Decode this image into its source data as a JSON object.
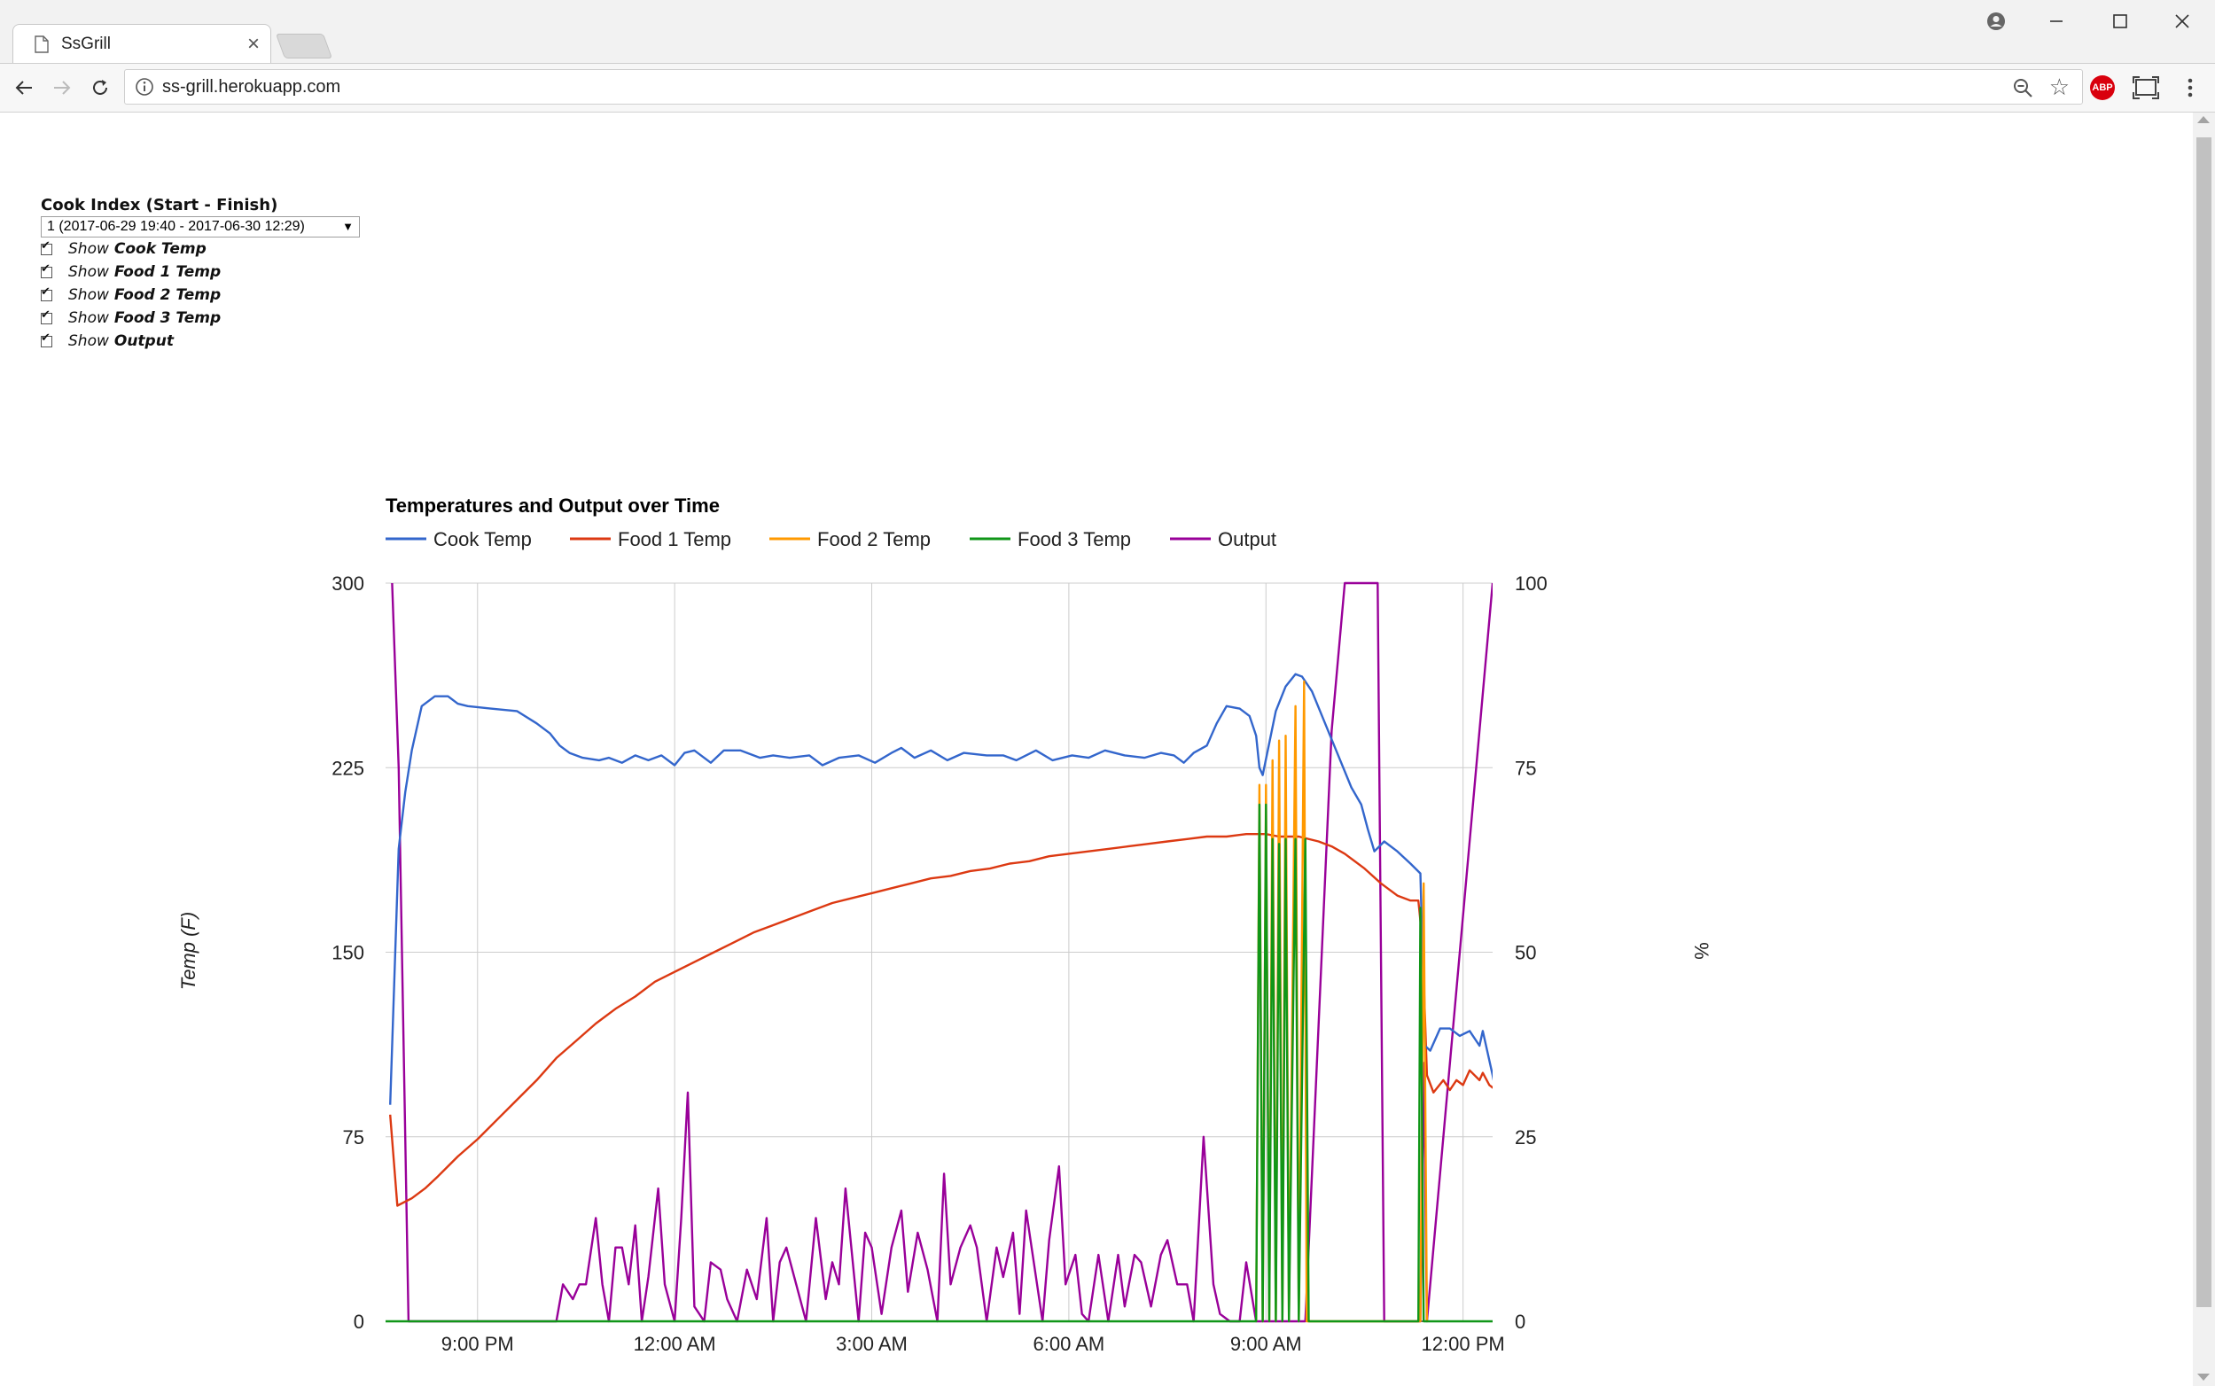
{
  "browser": {
    "tab_title": "SsGrill",
    "tab_close": "×",
    "url": "ss-grill.herokuapp.com",
    "star": "☆",
    "abp_label": "ABP"
  },
  "controls": {
    "cook_index_label": "Cook Index (Start - Finish)",
    "cook_index_value": "1 (2017-06-29 19:40 - 2017-06-30 12:29)",
    "checkbox_prefix": "Show",
    "checkboxes": [
      {
        "label": "Cook Temp",
        "checked": true
      },
      {
        "label": "Food 1 Temp",
        "checked": true
      },
      {
        "label": "Food 2 Temp",
        "checked": true
      },
      {
        "label": "Food 3 Temp",
        "checked": true
      },
      {
        "label": "Output",
        "checked": true
      }
    ]
  },
  "chart_data": {
    "type": "line",
    "title": "Temperatures and Output over Time",
    "ylabel": "Temp (F)",
    "y2label": "%",
    "ylim": [
      0,
      300
    ],
    "y2lim": [
      0,
      100
    ],
    "yticks": [
      "300",
      "225",
      "150",
      "75",
      "0"
    ],
    "y2ticks": [
      "100",
      "75",
      "50",
      "25",
      "0"
    ],
    "xlim": [
      19.6,
      36.45
    ],
    "xticks": [
      {
        "x": 21,
        "label": "9:00 PM"
      },
      {
        "x": 24,
        "label": "12:00 AM"
      },
      {
        "x": 27,
        "label": "3:00 AM"
      },
      {
        "x": 30,
        "label": "6:00 AM"
      },
      {
        "x": 33,
        "label": "9:00 AM"
      },
      {
        "x": 36,
        "label": "12:00 PM"
      }
    ],
    "legend_position": "top",
    "grid": true,
    "colors": {
      "cook": "#3366cc",
      "food1": "#dc3912",
      "food2": "#ff9900",
      "food3": "#109618",
      "output": "#990099"
    },
    "series": [
      {
        "name": "Cook Temp",
        "key": "cook",
        "axis": "left",
        "points": [
          [
            19.67,
            88
          ],
          [
            19.8,
            192
          ],
          [
            19.9,
            215
          ],
          [
            20.0,
            232
          ],
          [
            20.15,
            250
          ],
          [
            20.35,
            254
          ],
          [
            20.55,
            254
          ],
          [
            20.7,
            251
          ],
          [
            20.85,
            250
          ],
          [
            21.2,
            249
          ],
          [
            21.6,
            248
          ],
          [
            21.9,
            243
          ],
          [
            22.1,
            239
          ],
          [
            22.25,
            234
          ],
          [
            22.4,
            231
          ],
          [
            22.6,
            229
          ],
          [
            22.85,
            228
          ],
          [
            23.0,
            229
          ],
          [
            23.2,
            227
          ],
          [
            23.4,
            230
          ],
          [
            23.6,
            228
          ],
          [
            23.8,
            230
          ],
          [
            24.0,
            226
          ],
          [
            24.15,
            231
          ],
          [
            24.3,
            232
          ],
          [
            24.55,
            227
          ],
          [
            24.75,
            232
          ],
          [
            25.0,
            232
          ],
          [
            25.3,
            229
          ],
          [
            25.5,
            230
          ],
          [
            25.75,
            229
          ],
          [
            26.05,
            230
          ],
          [
            26.25,
            226
          ],
          [
            26.5,
            229
          ],
          [
            26.8,
            230
          ],
          [
            27.05,
            227
          ],
          [
            27.3,
            231
          ],
          [
            27.45,
            233
          ],
          [
            27.65,
            229
          ],
          [
            27.9,
            232
          ],
          [
            28.15,
            228
          ],
          [
            28.4,
            231
          ],
          [
            28.75,
            230
          ],
          [
            29.0,
            230
          ],
          [
            29.2,
            228
          ],
          [
            29.5,
            232
          ],
          [
            29.75,
            228
          ],
          [
            30.05,
            230
          ],
          [
            30.3,
            229
          ],
          [
            30.55,
            232
          ],
          [
            30.85,
            230
          ],
          [
            31.15,
            229
          ],
          [
            31.4,
            231
          ],
          [
            31.6,
            230
          ],
          [
            31.75,
            227
          ],
          [
            31.9,
            231
          ],
          [
            32.1,
            234
          ],
          [
            32.25,
            243
          ],
          [
            32.4,
            250
          ],
          [
            32.6,
            249
          ],
          [
            32.75,
            246
          ],
          [
            32.85,
            238
          ],
          [
            32.9,
            225
          ],
          [
            32.95,
            222
          ],
          [
            33.05,
            235
          ],
          [
            33.15,
            248
          ],
          [
            33.3,
            258
          ],
          [
            33.45,
            263
          ],
          [
            33.55,
            262
          ],
          [
            33.7,
            256
          ],
          [
            33.9,
            243
          ],
          [
            34.1,
            230
          ],
          [
            34.3,
            217
          ],
          [
            34.45,
            210
          ],
          [
            34.55,
            200
          ],
          [
            34.65,
            191
          ],
          [
            34.8,
            195
          ],
          [
            35.0,
            191
          ],
          [
            35.2,
            186
          ],
          [
            35.35,
            182
          ],
          [
            35.42,
            112
          ],
          [
            35.5,
            110
          ],
          [
            35.65,
            119
          ],
          [
            35.8,
            119
          ],
          [
            35.95,
            116
          ],
          [
            36.1,
            118
          ],
          [
            36.25,
            112
          ],
          [
            36.3,
            118
          ],
          [
            36.45,
            100
          ],
          [
            36.5,
            93
          ]
        ]
      },
      {
        "name": "Food 1 Temp",
        "key": "food1",
        "axis": "left",
        "points": [
          [
            19.67,
            84
          ],
          [
            19.78,
            47
          ],
          [
            20.0,
            50
          ],
          [
            20.2,
            54
          ],
          [
            20.4,
            59
          ],
          [
            20.7,
            67
          ],
          [
            21.0,
            74
          ],
          [
            21.3,
            82
          ],
          [
            21.6,
            90
          ],
          [
            21.9,
            98
          ],
          [
            22.2,
            107
          ],
          [
            22.5,
            114
          ],
          [
            22.8,
            121
          ],
          [
            23.1,
            127
          ],
          [
            23.4,
            132
          ],
          [
            23.7,
            138
          ],
          [
            24.0,
            142
          ],
          [
            24.3,
            146
          ],
          [
            24.6,
            150
          ],
          [
            24.9,
            154
          ],
          [
            25.2,
            158
          ],
          [
            25.5,
            161
          ],
          [
            25.8,
            164
          ],
          [
            26.1,
            167
          ],
          [
            26.4,
            170
          ],
          [
            26.7,
            172
          ],
          [
            27.0,
            174
          ],
          [
            27.3,
            176
          ],
          [
            27.6,
            178
          ],
          [
            27.9,
            180
          ],
          [
            28.2,
            181
          ],
          [
            28.5,
            183
          ],
          [
            28.8,
            184
          ],
          [
            29.1,
            186
          ],
          [
            29.4,
            187
          ],
          [
            29.7,
            189
          ],
          [
            30.0,
            190
          ],
          [
            30.3,
            191
          ],
          [
            30.6,
            192
          ],
          [
            30.9,
            193
          ],
          [
            31.2,
            194
          ],
          [
            31.5,
            195
          ],
          [
            31.8,
            196
          ],
          [
            32.1,
            197
          ],
          [
            32.4,
            197
          ],
          [
            32.7,
            198
          ],
          [
            33.0,
            198
          ],
          [
            33.2,
            197
          ],
          [
            33.5,
            197
          ],
          [
            33.8,
            195
          ],
          [
            34.0,
            193
          ],
          [
            34.2,
            190
          ],
          [
            34.5,
            184
          ],
          [
            34.75,
            178
          ],
          [
            35.0,
            173
          ],
          [
            35.2,
            171
          ],
          [
            35.32,
            171
          ],
          [
            35.38,
            155
          ],
          [
            35.45,
            100
          ],
          [
            35.55,
            93
          ],
          [
            35.7,
            98
          ],
          [
            35.8,
            94
          ],
          [
            35.9,
            98
          ],
          [
            36.0,
            96
          ],
          [
            36.1,
            102
          ],
          [
            36.25,
            98
          ],
          [
            36.3,
            101
          ],
          [
            36.4,
            96
          ],
          [
            36.5,
            94
          ]
        ]
      },
      {
        "name": "Food 2 Temp",
        "key": "food2",
        "axis": "left",
        "points": [
          [
            32.85,
            0
          ],
          [
            32.9,
            218
          ],
          [
            32.95,
            0
          ],
          [
            33.0,
            218
          ],
          [
            33.05,
            0
          ],
          [
            33.1,
            228
          ],
          [
            33.15,
            0
          ],
          [
            33.2,
            236
          ],
          [
            33.25,
            0
          ],
          [
            33.3,
            238
          ],
          [
            33.35,
            0
          ],
          [
            33.45,
            250
          ],
          [
            33.5,
            0
          ],
          [
            33.58,
            260
          ],
          [
            33.62,
            0
          ],
          [
            35.35,
            0
          ],
          [
            35.4,
            178
          ],
          [
            35.45,
            0
          ]
        ]
      },
      {
        "name": "Food 3 Temp",
        "key": "food3",
        "axis": "left",
        "points": [
          [
            19.6,
            0
          ],
          [
            32.85,
            0
          ],
          [
            32.9,
            210
          ],
          [
            32.95,
            0
          ],
          [
            33.0,
            210
          ],
          [
            33.05,
            0
          ],
          [
            33.1,
            196
          ],
          [
            33.15,
            0
          ],
          [
            33.2,
            194
          ],
          [
            33.25,
            0
          ],
          [
            33.3,
            196
          ],
          [
            33.35,
            0
          ],
          [
            33.45,
            196
          ],
          [
            33.5,
            0
          ],
          [
            33.6,
            196
          ],
          [
            33.65,
            0
          ],
          [
            35.32,
            0
          ],
          [
            35.35,
            168
          ],
          [
            35.4,
            0
          ],
          [
            36.45,
            0
          ]
        ]
      },
      {
        "name": "Output",
        "key": "output",
        "axis": "right",
        "points": [
          [
            19.7,
            100
          ],
          [
            19.8,
            75
          ],
          [
            19.9,
            25
          ],
          [
            19.95,
            0
          ],
          [
            22.2,
            0
          ],
          [
            22.3,
            5
          ],
          [
            22.45,
            3
          ],
          [
            22.55,
            5
          ],
          [
            22.65,
            5
          ],
          [
            22.8,
            14
          ],
          [
            22.9,
            5
          ],
          [
            23.0,
            0
          ],
          [
            23.1,
            10
          ],
          [
            23.2,
            10
          ],
          [
            23.3,
            5
          ],
          [
            23.4,
            13
          ],
          [
            23.5,
            0
          ],
          [
            23.6,
            6
          ],
          [
            23.75,
            18
          ],
          [
            23.85,
            5
          ],
          [
            24.0,
            0
          ],
          [
            24.1,
            14
          ],
          [
            24.2,
            31
          ],
          [
            24.3,
            2
          ],
          [
            24.45,
            0
          ],
          [
            24.55,
            8
          ],
          [
            24.7,
            7
          ],
          [
            24.8,
            3
          ],
          [
            24.95,
            0
          ],
          [
            25.1,
            7
          ],
          [
            25.25,
            3
          ],
          [
            25.4,
            14
          ],
          [
            25.5,
            0
          ],
          [
            25.6,
            8
          ],
          [
            25.7,
            10
          ],
          [
            25.85,
            5
          ],
          [
            26.0,
            0
          ],
          [
            26.15,
            14
          ],
          [
            26.3,
            3
          ],
          [
            26.4,
            8
          ],
          [
            26.5,
            5
          ],
          [
            26.6,
            18
          ],
          [
            26.8,
            0
          ],
          [
            26.9,
            12
          ],
          [
            27.0,
            10
          ],
          [
            27.15,
            1
          ],
          [
            27.3,
            10
          ],
          [
            27.45,
            15
          ],
          [
            27.55,
            4
          ],
          [
            27.7,
            12
          ],
          [
            27.85,
            7
          ],
          [
            28.0,
            0
          ],
          [
            28.1,
            20
          ],
          [
            28.2,
            5
          ],
          [
            28.35,
            10
          ],
          [
            28.5,
            13
          ],
          [
            28.6,
            10
          ],
          [
            28.75,
            0
          ],
          [
            28.9,
            10
          ],
          [
            29.0,
            6
          ],
          [
            29.15,
            12
          ],
          [
            29.25,
            1
          ],
          [
            29.35,
            15
          ],
          [
            29.5,
            6
          ],
          [
            29.6,
            0
          ],
          [
            29.7,
            11
          ],
          [
            29.85,
            21
          ],
          [
            29.95,
            5
          ],
          [
            30.1,
            9
          ],
          [
            30.2,
            1
          ],
          [
            30.3,
            0
          ],
          [
            30.45,
            9
          ],
          [
            30.6,
            0
          ],
          [
            30.75,
            9
          ],
          [
            30.85,
            2
          ],
          [
            31.0,
            9
          ],
          [
            31.1,
            8
          ],
          [
            31.25,
            2
          ],
          [
            31.4,
            9
          ],
          [
            31.5,
            11
          ],
          [
            31.65,
            5
          ],
          [
            31.8,
            5
          ],
          [
            31.9,
            0
          ],
          [
            32.05,
            25
          ],
          [
            32.2,
            5
          ],
          [
            32.3,
            1
          ],
          [
            32.45,
            0
          ],
          [
            32.6,
            0
          ],
          [
            32.7,
            8
          ],
          [
            32.85,
            0
          ],
          [
            33.6,
            0
          ],
          [
            33.65,
            10
          ],
          [
            33.8,
            40
          ],
          [
            33.9,
            60
          ],
          [
            34.0,
            80
          ],
          [
            34.2,
            100
          ],
          [
            34.7,
            100
          ],
          [
            34.8,
            0
          ],
          [
            35.3,
            0
          ],
          [
            35.35,
            0
          ],
          [
            35.4,
            35
          ],
          [
            35.45,
            0
          ],
          [
            36.45,
            100
          ]
        ]
      }
    ]
  }
}
